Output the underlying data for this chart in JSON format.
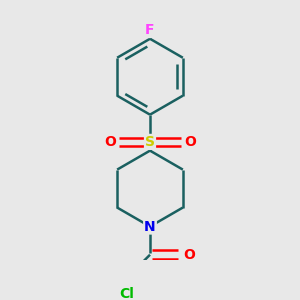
{
  "background_color": "#e8e8e8",
  "atom_colors": {
    "F": "#ff44ff",
    "S": "#cccc00",
    "O": "#ff0000",
    "N": "#0000ee",
    "Cl": "#00bb00",
    "C": "#1a6060"
  },
  "bond_color": "#1a6060",
  "bond_width": 1.8,
  "figsize": [
    3.0,
    3.0
  ],
  "dpi": 100
}
